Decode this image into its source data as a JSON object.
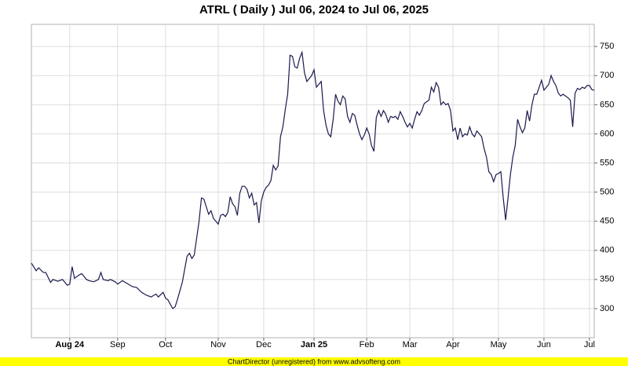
{
  "chart_data": {
    "type": "line",
    "title": "ATRL ( Daily ) Jul 06, 2024 to Jul 06, 2025",
    "footer": "ChartDirector (unregistered) from www.advsofteng.com",
    "x": [
      0,
      2,
      3,
      5,
      6,
      8,
      9,
      11,
      13,
      15,
      16,
      17,
      18,
      20,
      21,
      23,
      24,
      26,
      28,
      29,
      30,
      32,
      33,
      35,
      36,
      38,
      40,
      42,
      44,
      46,
      48,
      50,
      52,
      53,
      55,
      56,
      57,
      59,
      60,
      61,
      63,
      65,
      66,
      67,
      68,
      70,
      71,
      72,
      74,
      75,
      76,
      78,
      79,
      80,
      81,
      82,
      83,
      84,
      85,
      86,
      87,
      88,
      89,
      90,
      91,
      92,
      93,
      94,
      95,
      96,
      97,
      98,
      99,
      100,
      101,
      102,
      103,
      104,
      105,
      106,
      107,
      108,
      109,
      110,
      111,
      112,
      113,
      114,
      115,
      116,
      117,
      118,
      119,
      120,
      121,
      122,
      123,
      124,
      125,
      126,
      127,
      128,
      129,
      130,
      131,
      132,
      133,
      134,
      135,
      136,
      137,
      138,
      139,
      140,
      141,
      142,
      143,
      144,
      145,
      146,
      147,
      148,
      149,
      150,
      151,
      152,
      153,
      154,
      155,
      156,
      157,
      158,
      159,
      160,
      161,
      162,
      163,
      164,
      165,
      166,
      167,
      168,
      169,
      170,
      171,
      172,
      173,
      174,
      175,
      176,
      177,
      178,
      179,
      180,
      181,
      182,
      183,
      184,
      185,
      186,
      187,
      188,
      189,
      190,
      191,
      192,
      193,
      194,
      195,
      196,
      197,
      198,
      199,
      200,
      201,
      202,
      203,
      204,
      205,
      206,
      207,
      208,
      209,
      210,
      211,
      212,
      213,
      214,
      215,
      216,
      217,
      218,
      219,
      220,
      221,
      222,
      223,
      224,
      225,
      226,
      227,
      228,
      229,
      230,
      231,
      232,
      233,
      234,
      235
    ],
    "series": [
      {
        "color": "#1a1a4e",
        "values": [
          378,
          365,
          370,
          362,
          362,
          345,
          350,
          347,
          350,
          340,
          342,
          372,
          352,
          358,
          360,
          350,
          348,
          346,
          350,
          362,
          350,
          348,
          350,
          346,
          342,
          348,
          343,
          338,
          336,
          328,
          323,
          320,
          325,
          320,
          328,
          318,
          315,
          300,
          303,
          316,
          345,
          390,
          395,
          386,
          392,
          450,
          490,
          488,
          462,
          468,
          455,
          445,
          460,
          462,
          458,
          465,
          492,
          480,
          475,
          460,
          498,
          510,
          510,
          505,
          490,
          498,
          478,
          482,
          447,
          485,
          500,
          508,
          512,
          520,
          546,
          538,
          545,
          595,
          612,
          642,
          668,
          735,
          733,
          715,
          713,
          730,
          740,
          705,
          690,
          695,
          700,
          710,
          680,
          685,
          690,
          640,
          615,
          600,
          595,
          625,
          668,
          656,
          650,
          665,
          660,
          630,
          620,
          635,
          632,
          615,
          600,
          590,
          598,
          610,
          600,
          580,
          570,
          628,
          640,
          630,
          640,
          633,
          620,
          630,
          628,
          630,
          625,
          638,
          630,
          620,
          612,
          618,
          610,
          625,
          638,
          632,
          640,
          652,
          655,
          658,
          680,
          672,
          688,
          680,
          650,
          655,
          650,
          652,
          640,
          605,
          610,
          590,
          610,
          595,
          600,
          598,
          612,
          600,
          595,
          605,
          600,
          595,
          575,
          560,
          535,
          530,
          518,
          530,
          532,
          535,
          490,
          452,
          490,
          530,
          560,
          580,
          625,
          612,
          602,
          610,
          640,
          622,
          650,
          668,
          668,
          680,
          692,
          675,
          680,
          685,
          700,
          690,
          683,
          670,
          665,
          668,
          665,
          662,
          658,
          612,
          670,
          678,
          676,
          680,
          678,
          683,
          683,
          676,
          675
        ]
      }
    ],
    "xlim": [
      0,
      235
    ],
    "xticks": [
      {
        "value": 16,
        "label": "Aug 24"
      },
      {
        "value": 36,
        "label": "Sep"
      },
      {
        "value": 56,
        "label": "Oct"
      },
      {
        "value": 78,
        "label": "Nov"
      },
      {
        "value": 97,
        "label": "Dec"
      },
      {
        "value": 118,
        "label": "Jan 25"
      },
      {
        "value": 140,
        "label": "Feb"
      },
      {
        "value": 158,
        "label": "Mar"
      },
      {
        "value": 176,
        "label": "Apr"
      },
      {
        "value": 195,
        "label": "May"
      },
      {
        "value": 214,
        "label": "Jun"
      },
      {
        "value": 233,
        "label": "Jul"
      }
    ],
    "ylim": [
      250,
      788
    ],
    "yticks": [
      300,
      350,
      400,
      450,
      500,
      550,
      600,
      650,
      700,
      750
    ],
    "grid": true
  }
}
